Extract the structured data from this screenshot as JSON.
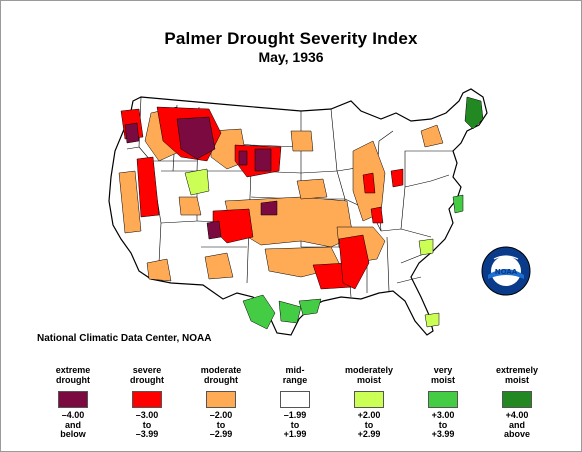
{
  "header": {
    "title": "Palmer Drought Severity Index",
    "subtitle": "May, 1936"
  },
  "credit": "National Climatic Data Center, NOAA",
  "logo": {
    "text": "NOAA",
    "icon": "noaa-logo-icon"
  },
  "legend": [
    {
      "label": [
        "extreme",
        "drought"
      ],
      "range": [
        "–4.00",
        "and",
        "below"
      ],
      "color": "#7a0a3f"
    },
    {
      "label": [
        "severe",
        "drought"
      ],
      "range": [
        "–3.00",
        "to",
        "–3.99"
      ],
      "color": "#ff0000"
    },
    {
      "label": [
        "moderate",
        "drought"
      ],
      "range": [
        "–2.00",
        "to",
        "–2.99"
      ],
      "color": "#ffaa55"
    },
    {
      "label": [
        "mid-",
        "range"
      ],
      "range": [
        "–1.99",
        "to",
        "+1.99"
      ],
      "color": "#ffffff"
    },
    {
      "label": [
        "moderately",
        "moist"
      ],
      "range": [
        "+2.00",
        "to",
        "+2.99"
      ],
      "color": "#ccff55"
    },
    {
      "label": [
        "very",
        "moist"
      ],
      "range": [
        "+3.00",
        "to",
        "+3.99"
      ],
      "color": "#44cc44"
    },
    {
      "label": [
        "extremely",
        "moist"
      ],
      "range": [
        "+4.00",
        "and",
        "above"
      ],
      "color": "#228822"
    }
  ]
}
